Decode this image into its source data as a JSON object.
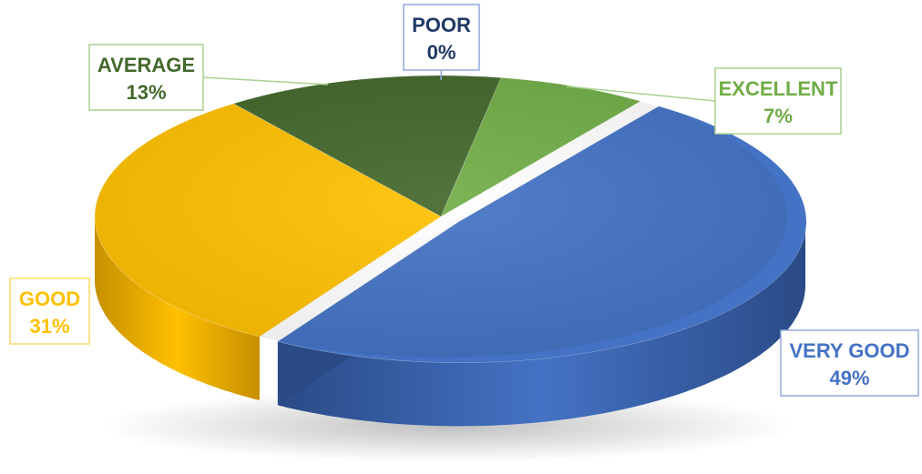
{
  "chart_data": {
    "type": "pie",
    "title": "",
    "legend": "none",
    "slices": [
      {
        "label": "POOR",
        "value": 0,
        "value_label": "0%",
        "color": "#1F3864",
        "side_color": "#162a49",
        "label_color": "#203864",
        "border_color": "#8fa9dc"
      },
      {
        "label": "EXCELLENT",
        "value": 7,
        "value_label": "7%",
        "color": "#70AD47",
        "side_color": "#4f7d31",
        "label_color": "#70AD47",
        "border_color": "#a9d18e"
      },
      {
        "label": "VERY GOOD",
        "value": 49,
        "value_label": "49%",
        "color": "#4472C4",
        "side_color": "#2a4a86",
        "label_color": "#4472C4",
        "border_color": "#8fa9dc"
      },
      {
        "label": "GOOD",
        "value": 31,
        "value_label": "31%",
        "color": "#FFC000",
        "side_color": "#c68f00",
        "label_color": "#FFC000",
        "border_color": "#ffd966"
      },
      {
        "label": "AVERAGE",
        "value": 13,
        "value_label": "13%",
        "color": "#43682B",
        "side_color": "#2e4a1d",
        "label_color": "#43682B",
        "border_color": "#a9d18e"
      }
    ]
  }
}
